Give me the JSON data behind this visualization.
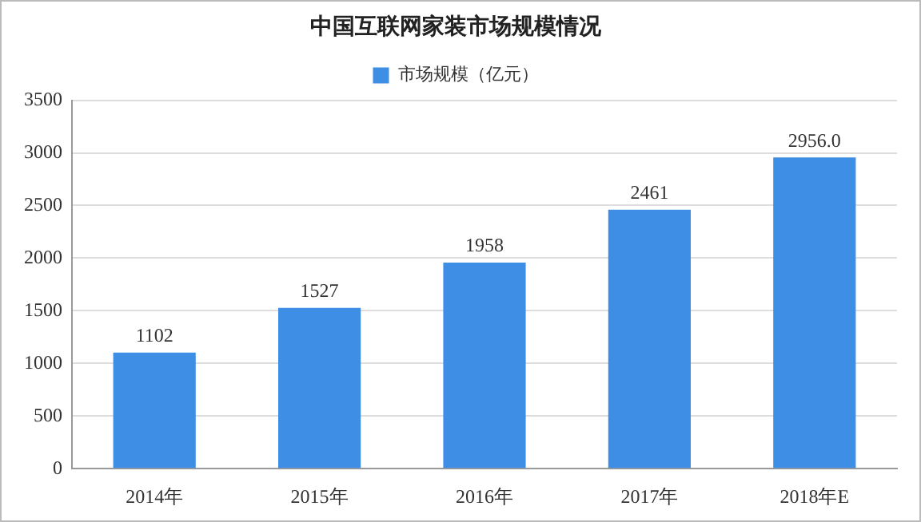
{
  "chart_data": {
    "type": "bar",
    "title": "中国互联网家装市场规模情况",
    "categories": [
      "2014年",
      "2015年",
      "2016年",
      "2017年",
      "2018年E"
    ],
    "series": [
      {
        "name": "市场规模（亿元）",
        "color": "#3e8ee6",
        "values": [
          1102,
          1527,
          1958,
          2461,
          2956.0
        ],
        "value_labels": [
          "1102",
          "1527",
          "1958",
          "2461",
          "2956.0"
        ]
      }
    ],
    "ylim": [
      0,
      3500
    ],
    "yticks": [
      0,
      500,
      1000,
      1500,
      2000,
      2500,
      3000,
      3500
    ],
    "grid": "y",
    "legend": "top"
  }
}
